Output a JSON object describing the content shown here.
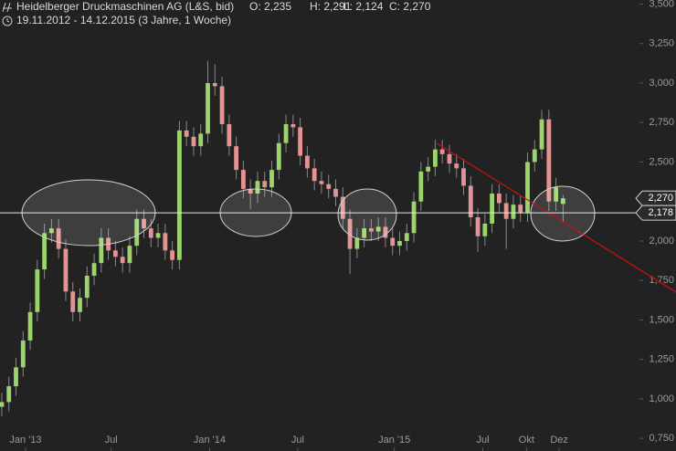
{
  "header": {
    "title": "Heidelberger Druckmaschinen AG (L&S, bid)",
    "open": "O: 2,235",
    "high": "H: 2,291",
    "low": "L: 2,124",
    "close": "C: 2,270",
    "range": "19.11.2012 - 14.12.2015 (3 Jahre, 1 Woche)"
  },
  "chart_data": {
    "type": "candlestick",
    "up_color": "#9ad46a",
    "down_color": "#e39393",
    "x": [
      0,
      2,
      4,
      6,
      8,
      10,
      12,
      14,
      16,
      18,
      20,
      22,
      24,
      26,
      28,
      30,
      32,
      34,
      36,
      38,
      40,
      42,
      44,
      46,
      48,
      50,
      52,
      54,
      56,
      58,
      60,
      62,
      64,
      66,
      68,
      70,
      72,
      74,
      76,
      78,
      80,
      82,
      84,
      86,
      88,
      90,
      92,
      94,
      96,
      98,
      100,
      102,
      104,
      106,
      108,
      110,
      112,
      114,
      116,
      118,
      120,
      122,
      124,
      126,
      128,
      130,
      132,
      134,
      136,
      138,
      140,
      142,
      144,
      146,
      148,
      150,
      152,
      154,
      156,
      158
    ],
    "open": [
      0.95,
      0.98,
      1.08,
      1.2,
      1.37,
      1.55,
      1.82,
      2.05,
      2.08,
      1.95,
      1.68,
      1.55,
      1.64,
      1.78,
      1.86,
      2.02,
      1.94,
      1.9,
      1.86,
      1.97,
      2.14,
      2.08,
      2.02,
      2.05,
      1.94,
      1.88,
      2.7,
      2.66,
      2.6,
      2.68,
      3.0,
      2.98,
      2.74,
      2.6,
      2.45,
      2.33,
      2.3,
      2.38,
      2.34,
      2.45,
      2.62,
      2.74,
      2.72,
      2.54,
      2.46,
      2.38,
      2.36,
      2.33,
      2.28,
      2.14,
      1.95,
      2.02,
      2.08,
      2.06,
      2.09,
      2.02,
      1.97,
      2.0,
      2.05,
      2.25,
      2.44,
      2.47,
      2.58,
      2.55,
      2.49,
      2.46,
      2.35,
      2.15,
      2.03,
      2.11,
      2.3,
      2.24,
      2.14,
      2.23,
      2.18,
      2.5,
      2.58,
      2.77,
      2.25,
      2.235
    ],
    "high": [
      1.04,
      1.14,
      1.26,
      1.43,
      1.61,
      1.88,
      2.11,
      2.14,
      2.14,
      2.01,
      1.74,
      1.7,
      1.84,
      1.92,
      2.08,
      2.08,
      2.0,
      1.96,
      2.03,
      2.2,
      2.2,
      2.14,
      2.11,
      2.11,
      2.0,
      2.76,
      2.76,
      2.72,
      2.74,
      3.14,
      3.12,
      3.04,
      2.8,
      2.66,
      2.51,
      2.39,
      2.44,
      2.44,
      2.51,
      2.68,
      2.8,
      2.8,
      2.78,
      2.6,
      2.52,
      2.44,
      2.42,
      2.39,
      2.34,
      2.2,
      2.08,
      2.14,
      2.14,
      2.15,
      2.15,
      2.08,
      2.06,
      2.11,
      2.31,
      2.5,
      2.53,
      2.64,
      2.64,
      2.61,
      2.55,
      2.52,
      2.41,
      2.21,
      2.17,
      2.36,
      2.36,
      2.3,
      2.29,
      2.29,
      2.56,
      2.64,
      2.83,
      2.83,
      2.4,
      2.291
    ],
    "low": [
      0.89,
      0.92,
      1.02,
      1.14,
      1.31,
      1.49,
      1.76,
      1.99,
      1.89,
      1.62,
      1.49,
      1.49,
      1.58,
      1.72,
      1.8,
      1.88,
      1.84,
      1.8,
      1.8,
      1.91,
      2.02,
      1.96,
      1.96,
      1.88,
      1.82,
      1.82,
      2.6,
      2.54,
      2.54,
      2.62,
      2.92,
      2.68,
      2.54,
      2.39,
      2.27,
      2.2,
      2.24,
      2.28,
      2.28,
      2.39,
      2.56,
      2.66,
      2.48,
      2.4,
      2.32,
      2.3,
      2.27,
      2.22,
      2.08,
      1.79,
      1.89,
      1.96,
      2.0,
      2.0,
      1.96,
      1.91,
      1.91,
      1.94,
      1.99,
      2.19,
      2.38,
      2.41,
      2.49,
      2.43,
      2.4,
      2.29,
      2.09,
      1.93,
      1.97,
      2.05,
      2.18,
      1.95,
      2.08,
      2.12,
      2.12,
      2.44,
      2.52,
      2.19,
      2.19,
      2.124
    ],
    "close": [
      0.98,
      1.08,
      1.2,
      1.37,
      1.55,
      1.82,
      2.05,
      2.08,
      1.95,
      1.68,
      1.55,
      1.64,
      1.78,
      1.86,
      2.02,
      1.94,
      1.9,
      1.86,
      1.97,
      2.14,
      2.08,
      2.02,
      2.05,
      1.94,
      1.88,
      2.7,
      2.66,
      2.6,
      2.68,
      3.0,
      2.98,
      2.74,
      2.6,
      2.45,
      2.33,
      2.3,
      2.38,
      2.34,
      2.45,
      2.62,
      2.74,
      2.72,
      2.54,
      2.46,
      2.38,
      2.36,
      2.33,
      2.28,
      2.14,
      1.95,
      2.02,
      2.08,
      2.06,
      2.09,
      2.02,
      1.97,
      2.0,
      2.05,
      2.25,
      2.44,
      2.47,
      2.58,
      2.55,
      2.49,
      2.46,
      2.35,
      2.15,
      2.03,
      2.11,
      2.3,
      2.24,
      2.14,
      2.23,
      2.18,
      2.5,
      2.58,
      2.77,
      2.25,
      2.34,
      2.27
    ],
    "xlim": [
      -0.5,
      179.5
    ],
    "ylim": [
      0.67,
      3.526
    ],
    "xticks": [
      {
        "value": 6.7,
        "label": "Jan '13"
      },
      {
        "value": 30.8,
        "label": "Jul"
      },
      {
        "value": 58.5,
        "label": "Jan '14"
      },
      {
        "value": 83.3,
        "label": "Jul"
      },
      {
        "value": 110.5,
        "label": "Jan '15"
      },
      {
        "value": 135.4,
        "label": "Jul"
      },
      {
        "value": 147.7,
        "label": "Okt"
      },
      {
        "value": 156.9,
        "label": "Dez"
      }
    ],
    "yticks": [
      {
        "value": 0.75,
        "label": "0,750"
      },
      {
        "value": 1,
        "label": "1,000"
      },
      {
        "value": 1.25,
        "label": "1,250"
      },
      {
        "value": 1.5,
        "label": "1,500"
      },
      {
        "value": 1.75,
        "label": "1,750"
      },
      {
        "value": 2,
        "label": "2,000"
      },
      {
        "value": 2.25,
        "label": "2,250"
      },
      {
        "value": 2.5,
        "label": "2,500"
      },
      {
        "value": 2.75,
        "label": "2,750"
      },
      {
        "value": 3,
        "label": "3,000"
      },
      {
        "value": 3.25,
        "label": "3,250"
      },
      {
        "value": 3.5,
        "label": "3,500"
      }
    ],
    "markers": [
      {
        "value": 2.27,
        "label": "2,270",
        "line": false
      },
      {
        "value": 2.178,
        "label": "2,178",
        "line": true
      }
    ]
  }
}
